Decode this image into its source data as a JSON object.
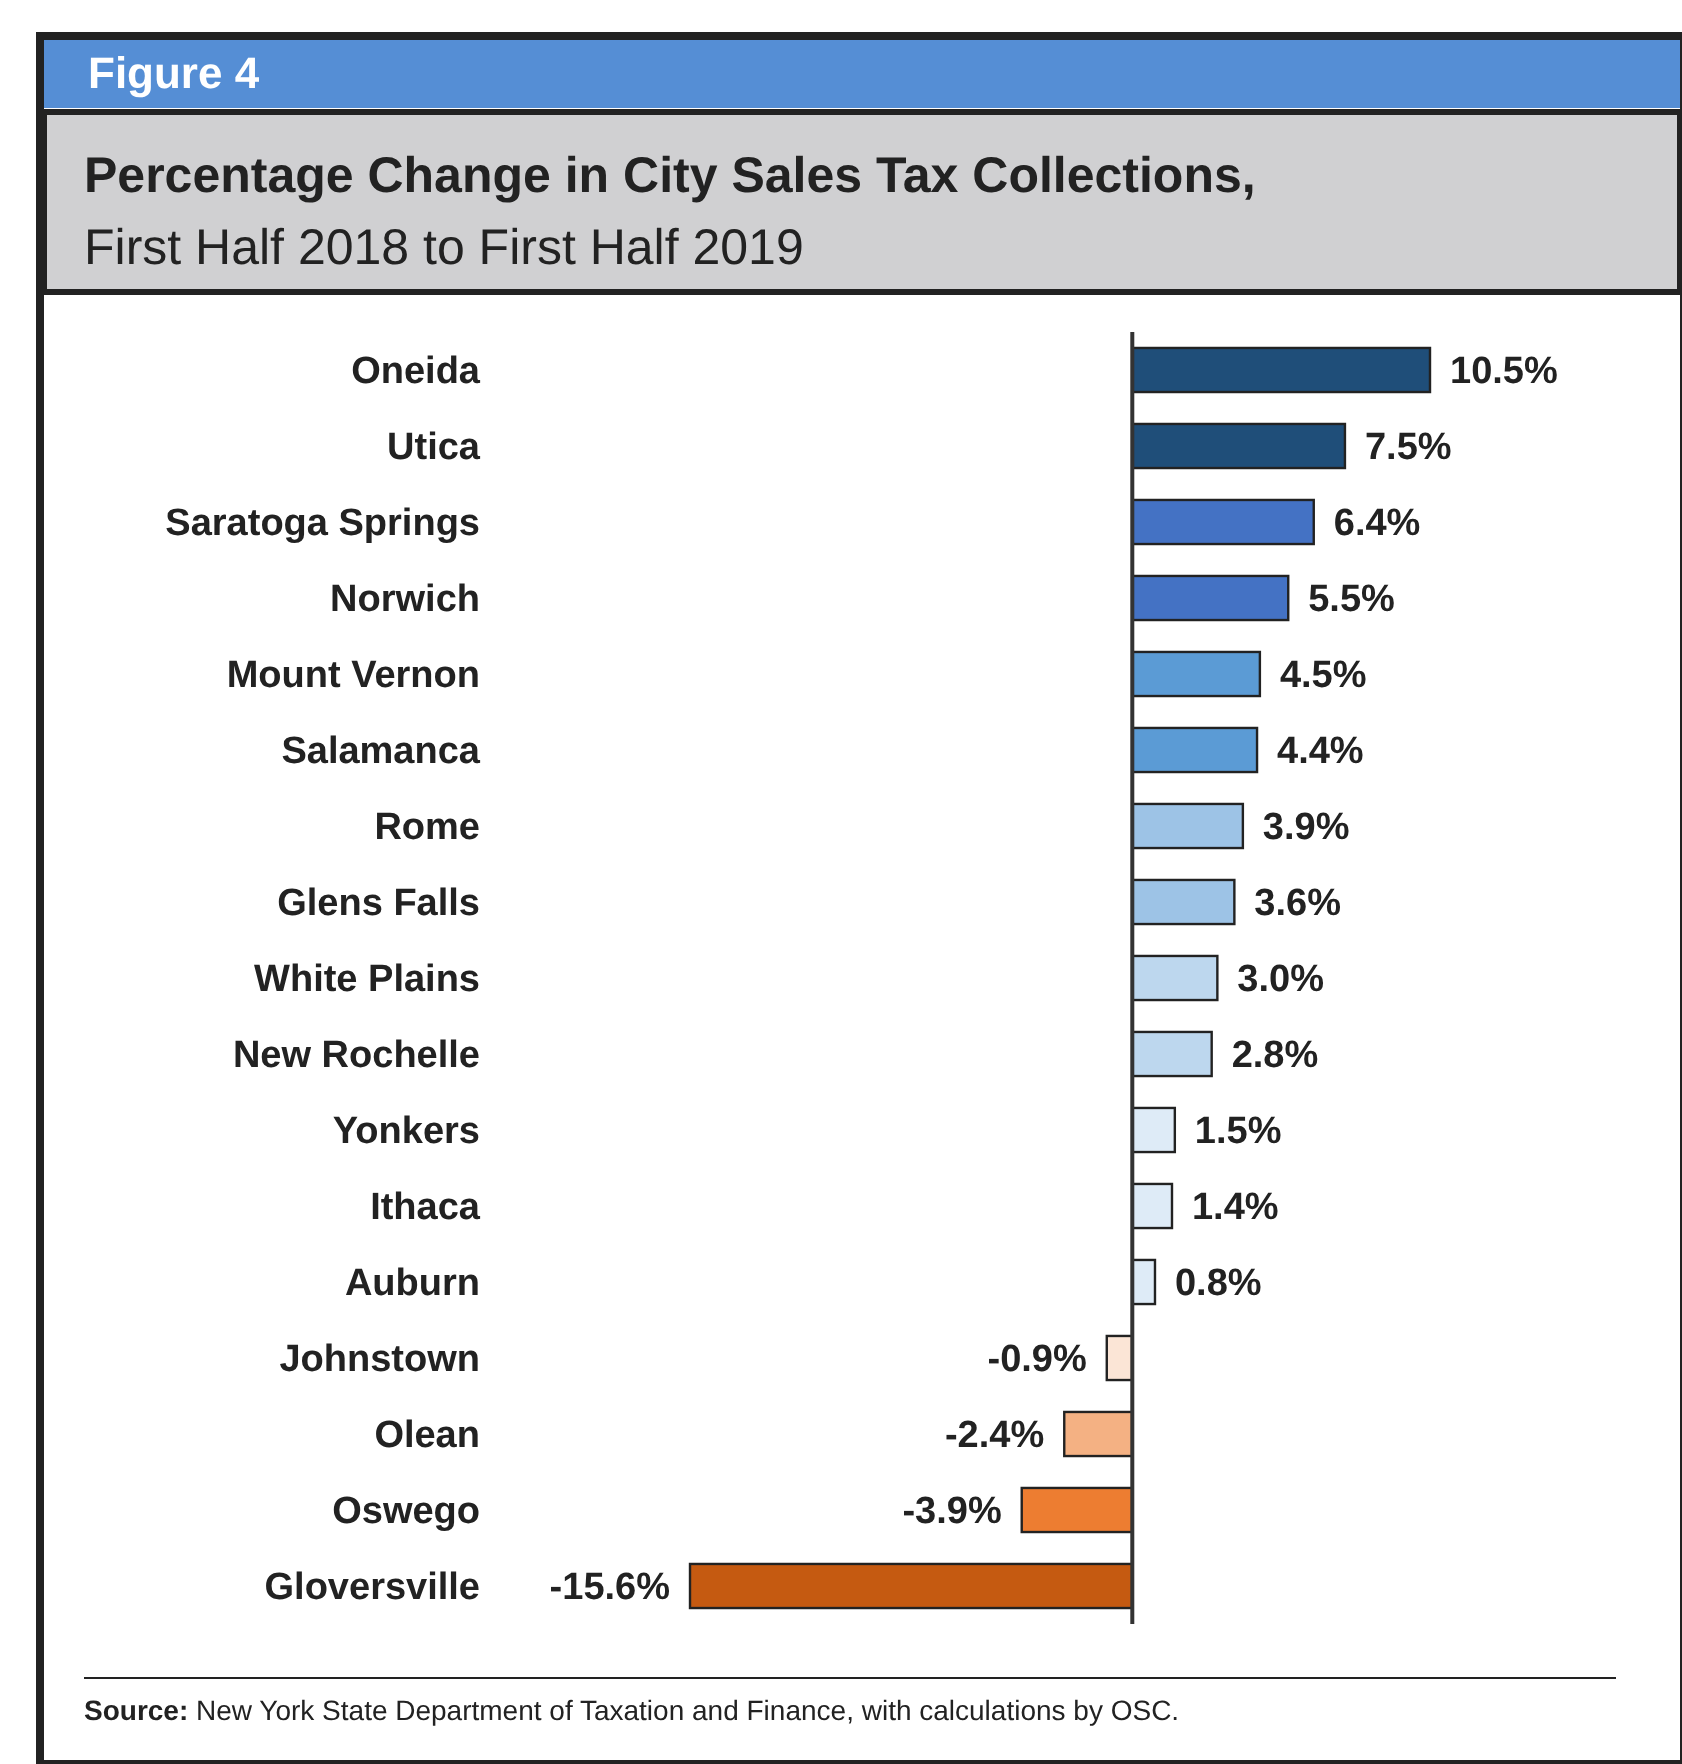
{
  "chart_data": {
    "type": "bar",
    "orientation": "horizontal",
    "title": "Percentage Change in City Sales Tax Collections,",
    "subtitle": "First Half 2018 to First Half 2019",
    "annotations": [
      "Figure 4",
      "Source: New York State Department of Taxation and Finance, with calculations by OSC."
    ],
    "categories": [
      "Oneida",
      "Utica",
      "Saratoga Springs",
      "Norwich",
      "Mount Vernon",
      "Salamanca",
      "Rome",
      "Glens Falls",
      "White Plains",
      "New Rochelle",
      "Yonkers",
      "Ithaca",
      "Auburn",
      "Johnstown",
      "Olean",
      "Oswego",
      "Gloversville"
    ],
    "values": [
      10.5,
      7.5,
      6.4,
      5.5,
      4.5,
      4.4,
      3.9,
      3.6,
      3.0,
      2.8,
      1.5,
      1.4,
      0.8,
      -0.9,
      -2.4,
      -3.9,
      -15.6
    ],
    "value_labels": [
      "10.5%",
      "7.5%",
      "6.4%",
      "5.5%",
      "4.5%",
      "4.4%",
      "3.9%",
      "3.6%",
      "3.0%",
      "2.8%",
      "1.5%",
      "1.4%",
      "0.8%",
      "-0.9%",
      "-2.4%",
      "-3.9%",
      "-15.6%"
    ],
    "colors": [
      "#1f4e79",
      "#1f4e79",
      "#4472c4",
      "#4472c4",
      "#5b9bd5",
      "#5b9bd5",
      "#9dc3e6",
      "#9dc3e6",
      "#bdd7ee",
      "#bdd7ee",
      "#deebf7",
      "#deebf7",
      "#deebf7",
      "#fbe5d6",
      "#f4b183",
      "#ed7d31",
      "#c55a11"
    ],
    "tick_labels": "y"
  }
}
